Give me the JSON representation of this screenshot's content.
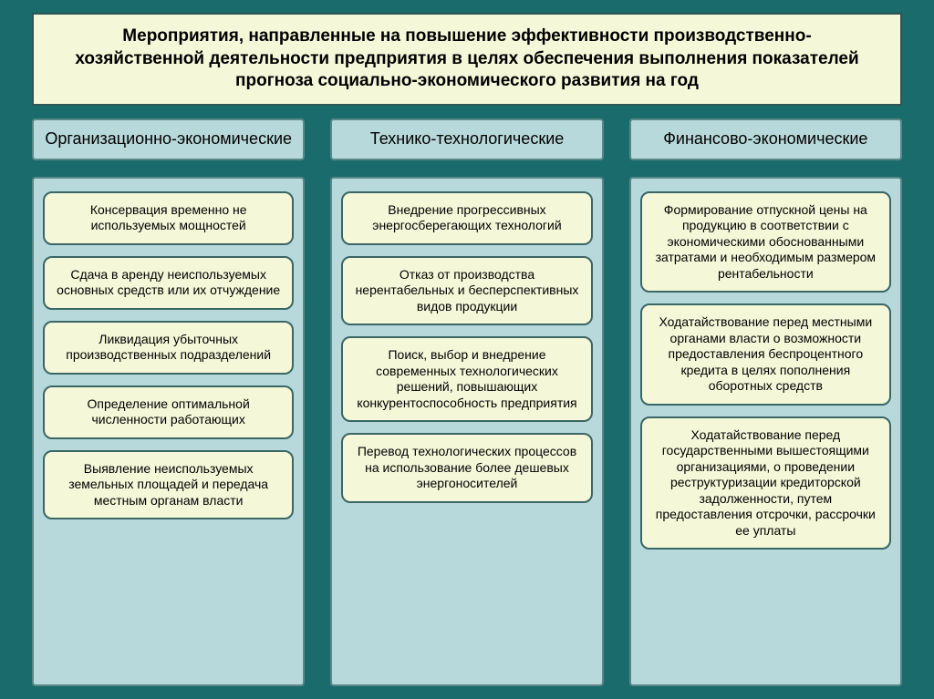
{
  "type": "infographic",
  "background_color": "#1a6b6b",
  "title_box": {
    "text": "Мероприятия, направленные на повышение эффективности производственно-хозяйственной деятельности предприятия в целях обеспечения выполнения показателей прогноза социально-экономического развития на год",
    "background_color": "#f5f8d8",
    "border_color": "#2d5555",
    "font_size": 19,
    "font_weight": "bold"
  },
  "category_header_style": {
    "background_color": "#b8d9db",
    "border_color": "#5a8888",
    "font_size": 18
  },
  "items_container_style": {
    "background_color": "#b8d9db",
    "border_color": "#5a8888"
  },
  "item_box_style": {
    "background_color": "#f5f8d8",
    "border_color": "#3a6666",
    "border_radius": 10,
    "font_size": 14
  },
  "columns": [
    {
      "header": "Организационно-экономические",
      "items": [
        "Консервация временно не используемых мощностей",
        "Сдача в аренду неиспользуемых основных средств или их отчуждение",
        "Ликвидация убыточных производственных подразделений",
        "Определение оптимальной численности работающих",
        "Выявление неиспользуемых земельных площадей и передача местным органам власти"
      ]
    },
    {
      "header": "Технико-технологические",
      "items": [
        "Внедрение прогрессивных энергосберегающих технологий",
        "Отказ от производства нерентабельных и бесперспективных видов продукции",
        "Поиск, выбор и внедрение современных технологических решений, повышающих конкурентоспособность предприятия",
        "Перевод технологических процессов на использование более дешевых энергоносителей"
      ]
    },
    {
      "header": "Финансово-экономические",
      "items": [
        "Формирование отпускной цены на продукцию в соответствии с экономическими обоснованными затратами и необходимым размером рентабельности",
        "Ходатайствование перед местными органами власти о возможности предоставления беспроцентного кредита в целях пополнения оборотных средств",
        "Ходатайствование перед государственными вышестоящими организациями, о проведении реструктуризации кредиторской задолженности, путем предоставления отсрочки, рассрочки ее уплаты"
      ]
    }
  ]
}
